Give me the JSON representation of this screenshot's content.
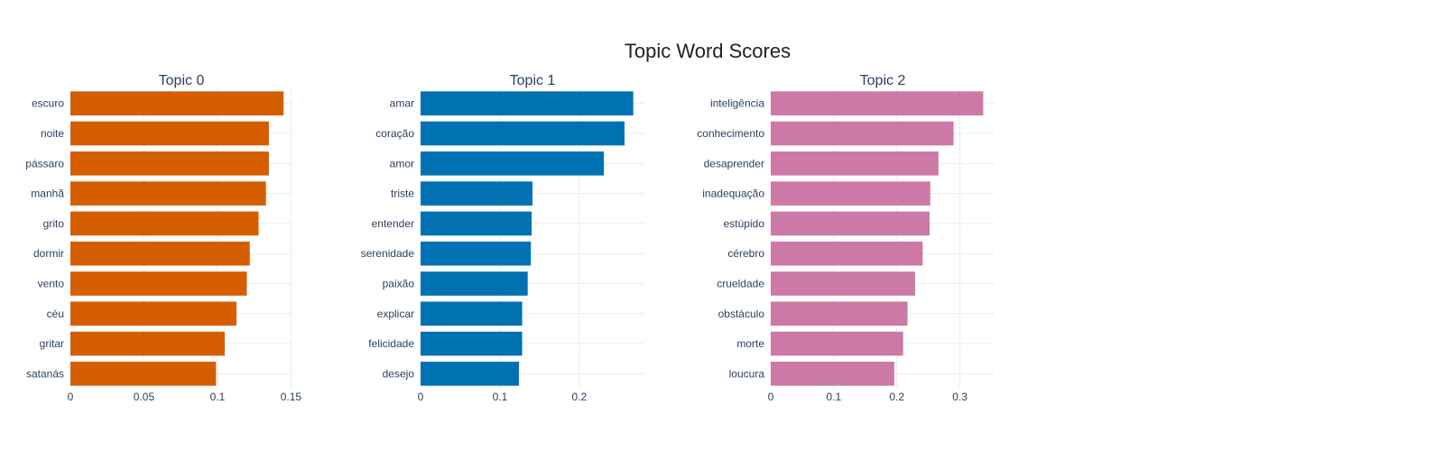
{
  "figure": {
    "title": "Topic Word Scores"
  },
  "chart_data": [
    {
      "type": "bar",
      "orientation": "horizontal",
      "title": "Topic 0",
      "color": "#D55E00",
      "categories": [
        "escuro",
        "noite",
        "pássaro",
        "manhã",
        "grito",
        "dormir",
        "vento",
        "céu",
        "gritar",
        "satanás"
      ],
      "values": [
        0.145,
        0.135,
        0.135,
        0.133,
        0.128,
        0.122,
        0.12,
        0.113,
        0.105,
        0.099
      ],
      "xlim": [
        0,
        0.151
      ],
      "xticks": [
        0,
        0.05,
        0.1,
        0.15
      ],
      "xtick_labels": [
        "0",
        "0.05",
        "0.1",
        "0.15"
      ],
      "grid": true
    },
    {
      "type": "bar",
      "orientation": "horizontal",
      "title": "Topic 1",
      "color": "#0072B2",
      "categories": [
        "amar",
        "coração",
        "amor",
        "triste",
        "entender",
        "serenidade",
        "paixão",
        "explicar",
        "felicidade",
        "desejo"
      ],
      "values": [
        0.268,
        0.257,
        0.231,
        0.141,
        0.14,
        0.139,
        0.135,
        0.128,
        0.128,
        0.124
      ],
      "xlim": [
        0,
        0.282
      ],
      "xticks": [
        0,
        0.1,
        0.2
      ],
      "xtick_labels": [
        "0",
        "0.1",
        "0.2"
      ],
      "grid": true
    },
    {
      "type": "bar",
      "orientation": "horizontal",
      "title": "Topic 2",
      "color": "#CC79A7",
      "categories": [
        "inteligência",
        "conhecimento",
        "desaprender",
        "inadequação",
        "estúpido",
        "cérebro",
        "crueldade",
        "obstáculo",
        "morte",
        "loucura"
      ],
      "values": [
        0.337,
        0.29,
        0.266,
        0.253,
        0.252,
        0.241,
        0.229,
        0.217,
        0.21,
        0.196
      ],
      "xlim": [
        0,
        0.355
      ],
      "xticks": [
        0,
        0.1,
        0.2,
        0.3
      ],
      "xtick_labels": [
        "0",
        "0.1",
        "0.2",
        "0.3"
      ],
      "grid": true
    }
  ]
}
